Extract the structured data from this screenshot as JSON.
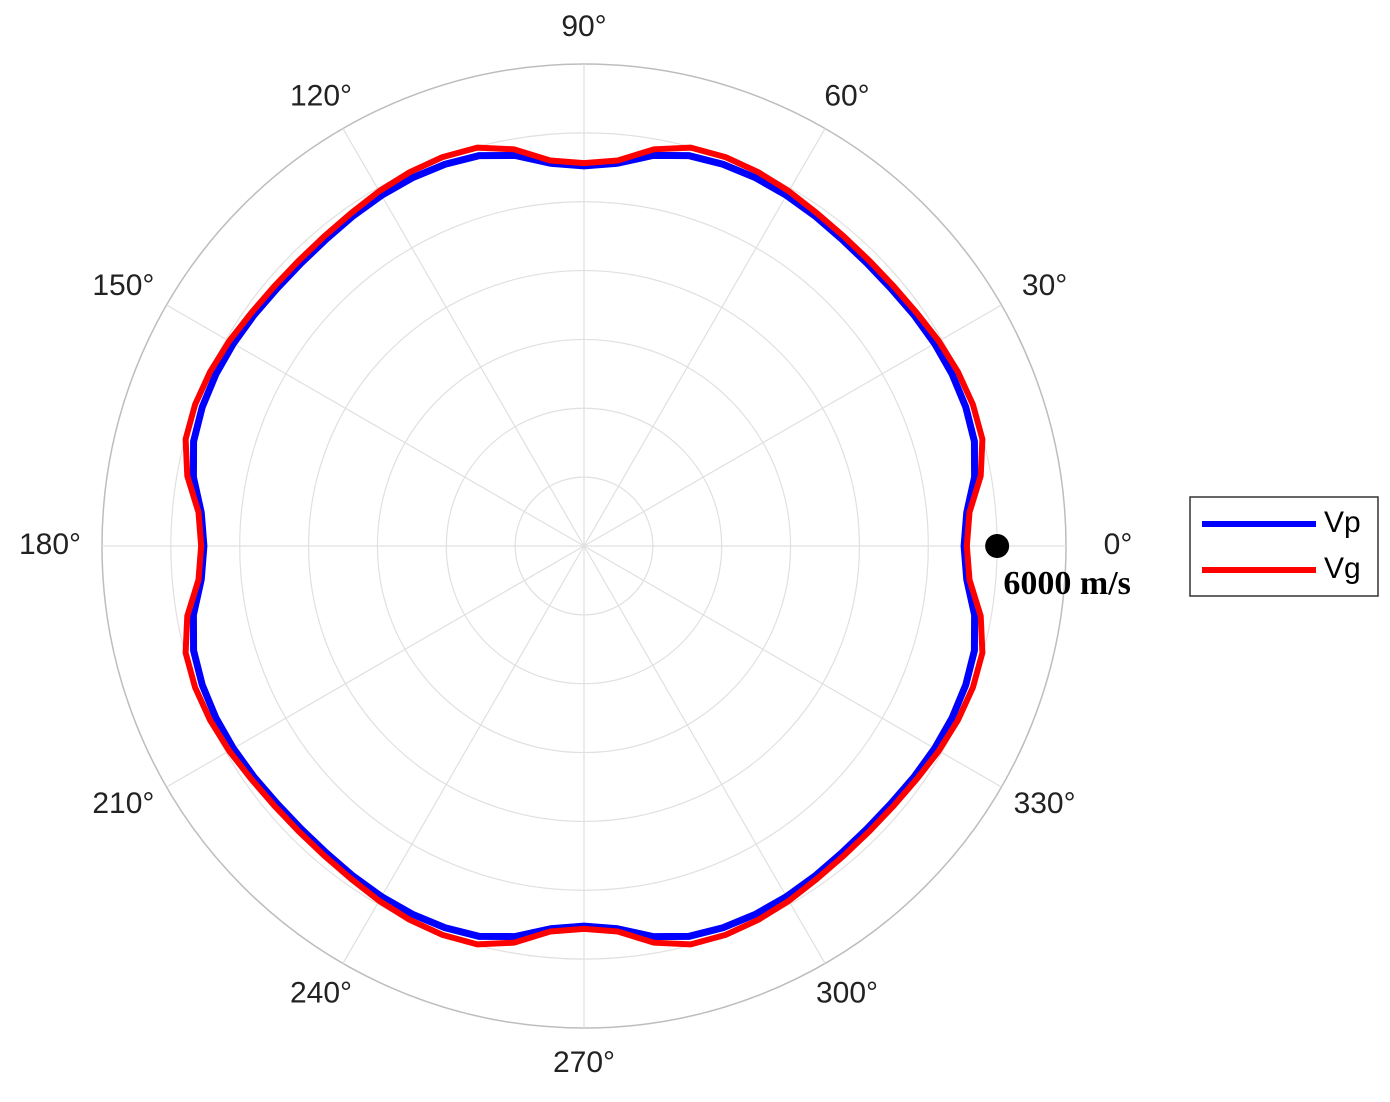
{
  "chart_data": {
    "type": "polar-line",
    "theta": [
      0,
      5,
      10,
      15,
      20,
      25,
      30,
      35,
      40,
      45,
      50,
      55,
      60,
      65,
      70,
      75,
      80,
      85,
      90,
      95,
      100,
      105,
      110,
      115,
      120,
      125,
      130,
      135,
      140,
      145,
      150,
      155,
      160,
      165,
      170,
      175,
      180,
      185,
      190,
      195,
      200,
      205,
      210,
      215,
      220,
      225,
      230,
      235,
      240,
      245,
      250,
      255,
      260,
      265,
      270,
      275,
      280,
      285,
      290,
      295,
      300,
      305,
      310,
      315,
      320,
      325,
      330,
      335,
      340,
      345,
      350,
      355
    ],
    "series": [
      {
        "name": "Vp",
        "color": "#0000ff",
        "values": [
          5520,
          5580,
          5760,
          5870,
          5900,
          5900,
          5880,
          5850,
          5820,
          5810,
          5820,
          5850,
          5880,
          5900,
          5900,
          5870,
          5760,
          5580,
          5520,
          5580,
          5760,
          5870,
          5900,
          5900,
          5880,
          5850,
          5820,
          5810,
          5820,
          5850,
          5880,
          5900,
          5900,
          5870,
          5760,
          5580,
          5520,
          5580,
          5760,
          5870,
          5900,
          5900,
          5880,
          5850,
          5820,
          5810,
          5820,
          5850,
          5880,
          5900,
          5900,
          5870,
          5760,
          5580,
          5520,
          5580,
          5760,
          5870,
          5900,
          5900,
          5880,
          5850,
          5820,
          5810,
          5820,
          5850,
          5880,
          5900,
          5900,
          5870,
          5760,
          5580
        ]
      },
      {
        "name": "Vg",
        "color": "#ff0000",
        "values": [
          5560,
          5620,
          5850,
          5990,
          6010,
          5990,
          5950,
          5900,
          5870,
          5860,
          5870,
          5900,
          5950,
          5990,
          6010,
          5990,
          5850,
          5620,
          5560,
          5620,
          5850,
          5990,
          6010,
          5990,
          5950,
          5900,
          5870,
          5860,
          5870,
          5900,
          5950,
          5990,
          6010,
          5990,
          5850,
          5620,
          5560,
          5620,
          5850,
          5990,
          6010,
          5990,
          5950,
          5900,
          5870,
          5860,
          5870,
          5900,
          5950,
          5990,
          6010,
          5990,
          5850,
          5620,
          5560,
          5620,
          5850,
          5990,
          6010,
          5990,
          5950,
          5900,
          5870,
          5860,
          5870,
          5900,
          5950,
          5990,
          6010,
          5990,
          5850,
          5620
        ]
      }
    ],
    "rlim": [
      0,
      7000
    ],
    "rticks": [
      1000,
      2000,
      3000,
      4000,
      5000,
      6000,
      7000
    ],
    "thetaticks": [
      {
        "value": 0,
        "label": "0°"
      },
      {
        "value": 30,
        "label": "30°"
      },
      {
        "value": 60,
        "label": "60°"
      },
      {
        "value": 90,
        "label": "90°"
      },
      {
        "value": 120,
        "label": "120°"
      },
      {
        "value": 150,
        "label": "150°"
      },
      {
        "value": 180,
        "label": "180°"
      },
      {
        "value": 210,
        "label": "210°"
      },
      {
        "value": 240,
        "label": "240°"
      },
      {
        "value": 270,
        "label": "270°"
      },
      {
        "value": 300,
        "label": "300°"
      },
      {
        "value": 330,
        "label": "330°"
      }
    ],
    "annotation": {
      "text": "6000 m/s",
      "r": 6000,
      "theta": 0
    },
    "legend": "right"
  }
}
